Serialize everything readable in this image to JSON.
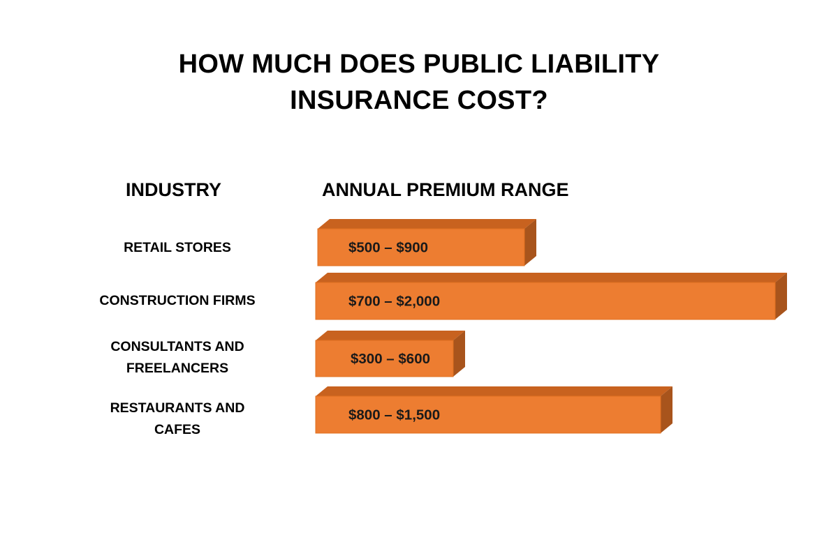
{
  "title_lines": [
    "HOW MUCH DOES PUBLIC LIABILITY",
    "INSURANCE COST?"
  ],
  "headers": {
    "industry": "INDUSTRY",
    "range": "ANNUAL PREMIUM RANGE"
  },
  "rows": [
    {
      "lines": [
        "RETAIL STORES"
      ]
    },
    {
      "lines": [
        "CONSTRUCTION FIRMS"
      ]
    },
    {
      "lines": [
        "CONSULTANTS AND",
        "FREELANCERS"
      ]
    },
    {
      "lines": [
        "RESTAURANTS AND",
        "CAFES"
      ]
    }
  ],
  "colors": {
    "bar_front": "#ED7D31",
    "bar_top": "#C8621F",
    "bar_side": "#A8541C",
    "bar_edge": "#E07020"
  },
  "chart_data": {
    "type": "bar",
    "orientation": "horizontal",
    "style": "3d",
    "title": "HOW MUCH DOES PUBLIC LIABILITY INSURANCE COST?",
    "xlabel": "ANNUAL PREMIUM RANGE",
    "ylabel": "INDUSTRY",
    "categories": [
      "RETAIL STORES",
      "CONSTRUCTION FIRMS",
      "CONSULTANTS AND FREELANCERS",
      "RESTAURANTS AND CAFES"
    ],
    "labels": [
      "$500 – $900",
      "$700 – $2,000",
      "$300 – $600",
      "$800 – $1,500"
    ],
    "values": [
      900,
      2000,
      600,
      1500
    ],
    "ranges": [
      [
        500,
        900
      ],
      [
        700,
        2000
      ],
      [
        300,
        600
      ],
      [
        800,
        1500
      ]
    ]
  }
}
